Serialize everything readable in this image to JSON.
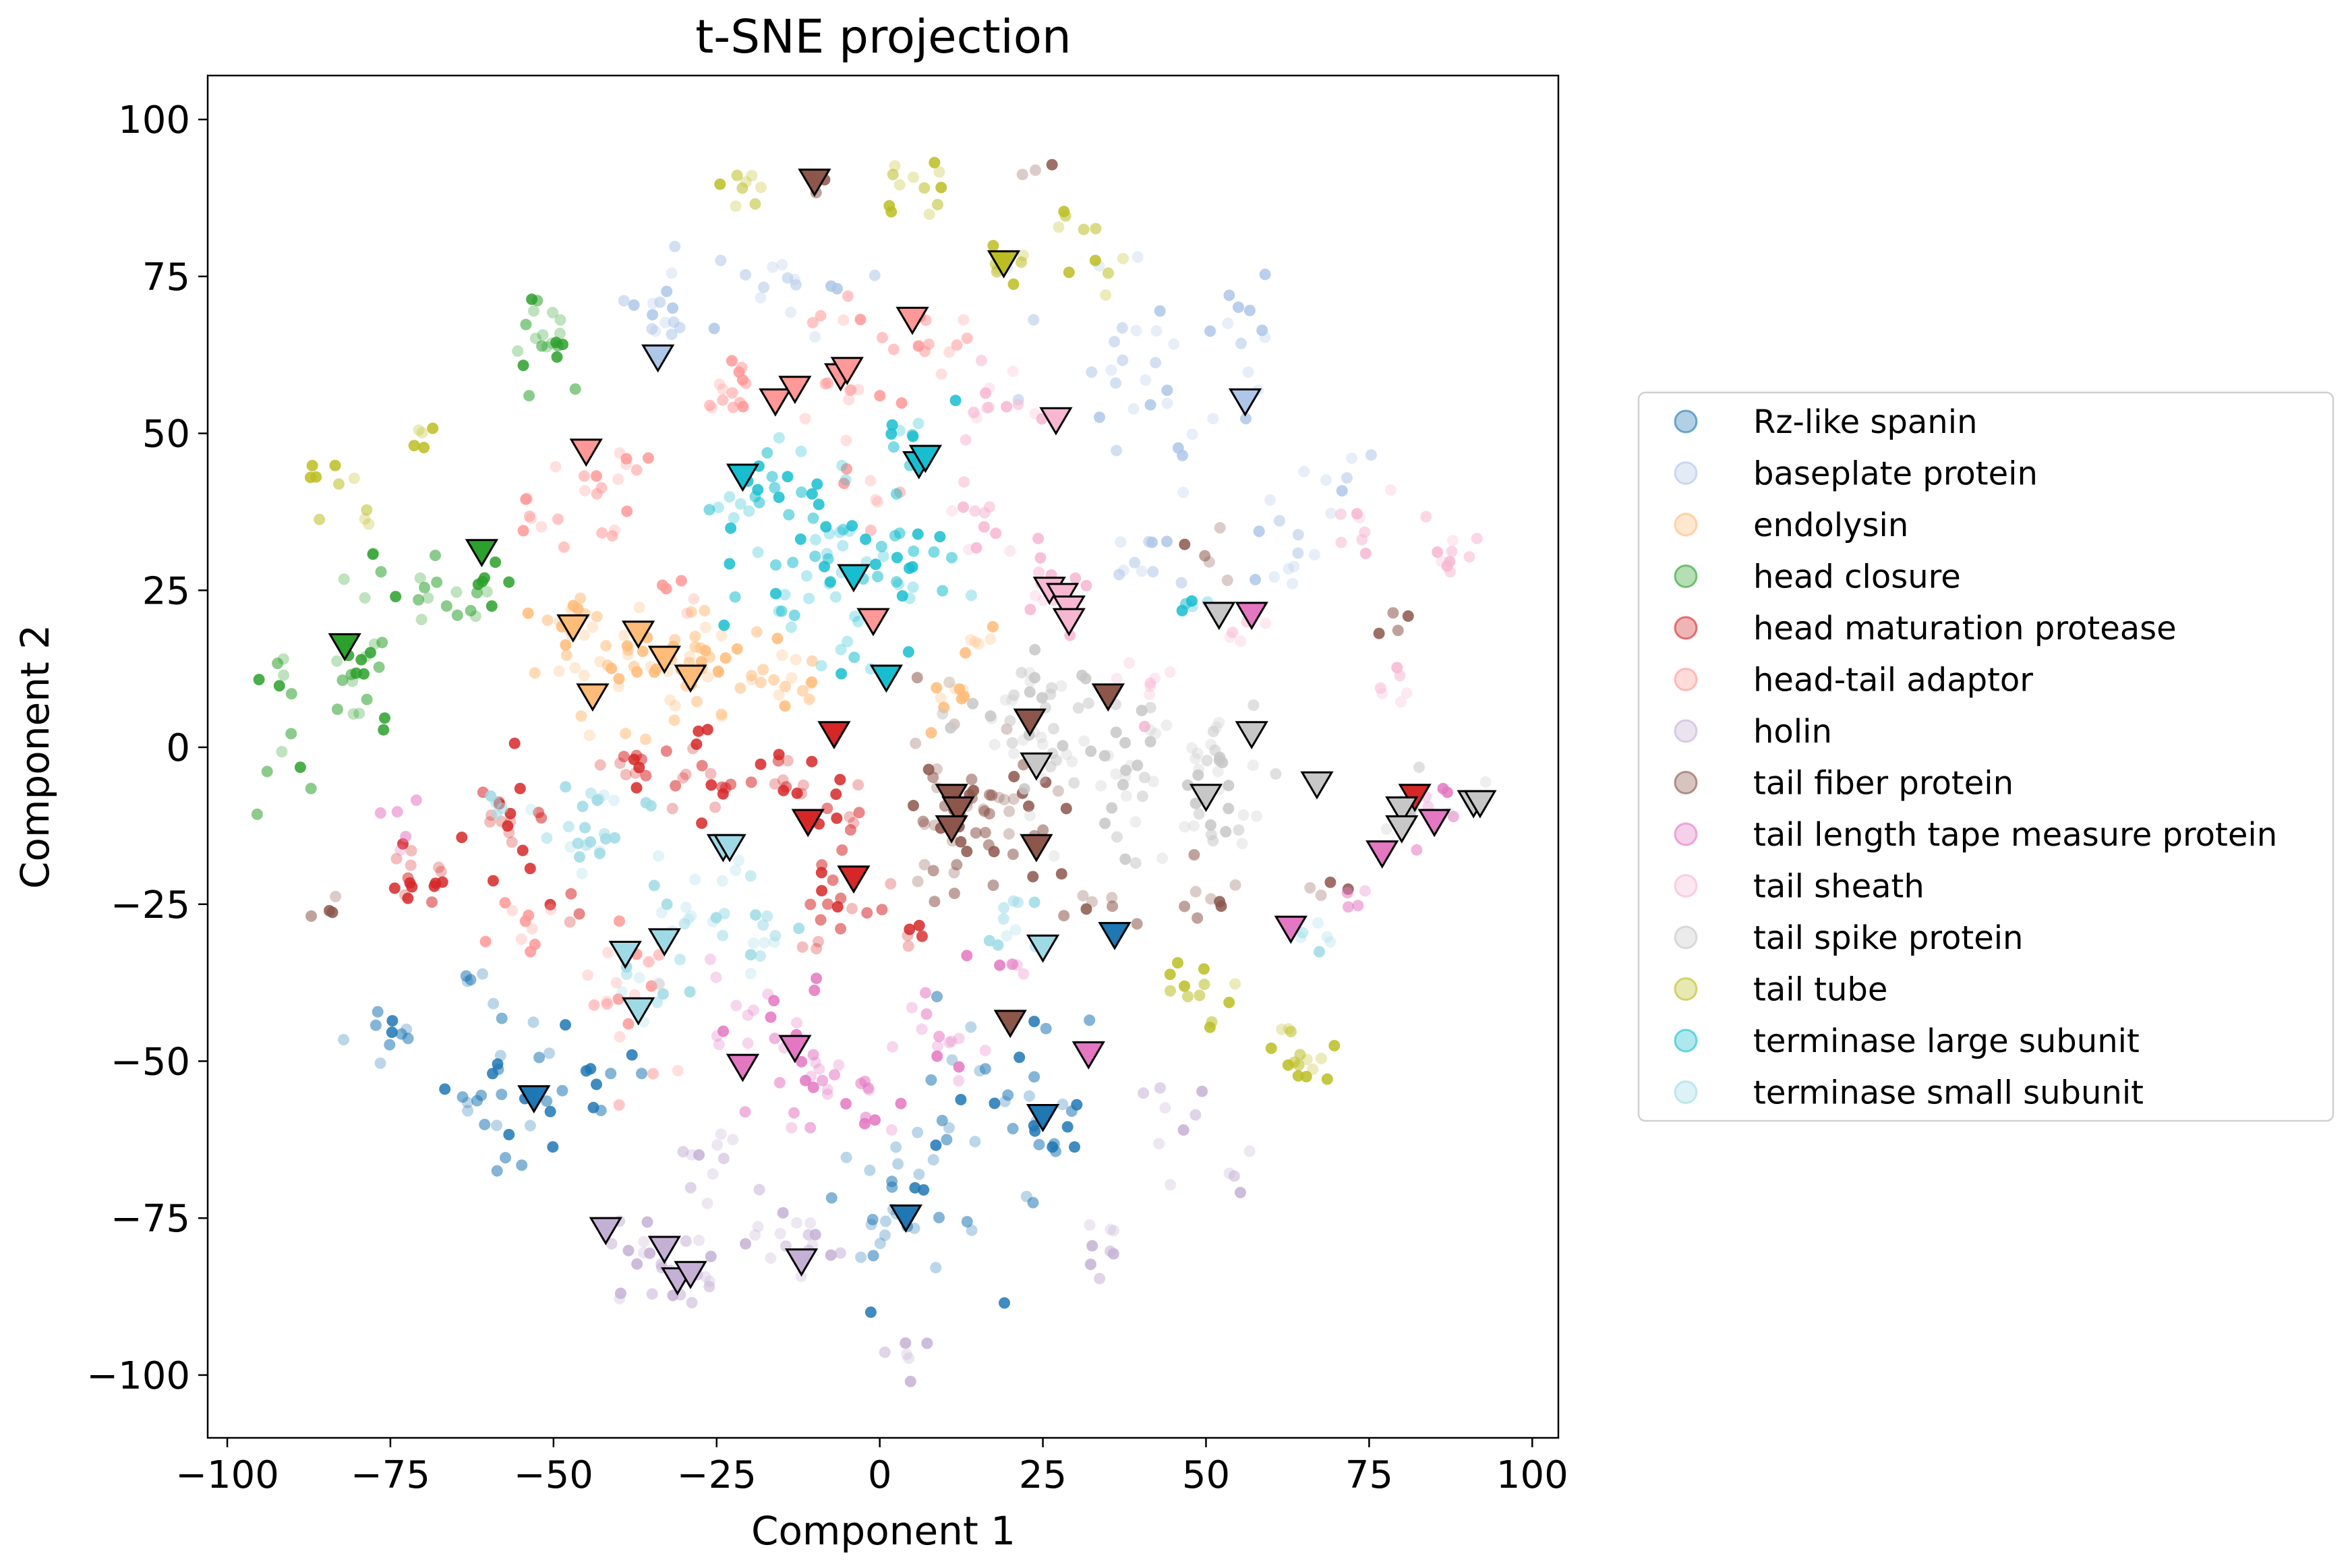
{
  "chart_data": {
    "type": "scatter",
    "title": "t-SNE projection",
    "xlabel": "Component 1",
    "ylabel": "Component 2",
    "xlim": [
      -103,
      104
    ],
    "ylim": [
      -110,
      107
    ],
    "xticks": [
      -100,
      -75,
      -50,
      -25,
      0,
      25,
      50,
      75,
      100
    ],
    "yticks": [
      -100,
      -75,
      -50,
      -25,
      0,
      25,
      50,
      75,
      100
    ],
    "xtick_labels": [
      "−100",
      "−75",
      "−50",
      "−25",
      "0",
      "25",
      "50",
      "75",
      "100"
    ],
    "ytick_labels": [
      "−100",
      "−75",
      "−50",
      "−25",
      "0",
      "25",
      "50",
      "75",
      "100"
    ],
    "grid": false,
    "legend_position": "outside-right",
    "marker_note": "small circles = individual proteins (semi-transparent); triangles with black edge = class-level markers",
    "series": [
      {
        "name": "Rz-like spanin",
        "color": "#1f77b4",
        "clusters": [
          [
            -76,
            -45,
            3,
            10
          ],
          [
            -62,
            -37,
            1,
            4
          ],
          [
            -57,
            -53,
            6,
            30
          ],
          [
            -44,
            -55,
            4,
            8
          ],
          [
            5,
            -73,
            7,
            35
          ],
          [
            18,
            -55,
            6,
            20
          ],
          [
            28,
            -60,
            4,
            10
          ]
        ],
        "markers": [
          [
            -53,
            -56
          ],
          [
            4,
            -75
          ],
          [
            25,
            -59
          ],
          [
            36,
            -30
          ]
        ]
      },
      {
        "name": "baseplate protein",
        "color": "#aec7e8",
        "clusters": [
          [
            -34,
            70,
            3,
            15
          ],
          [
            -14,
            74,
            5,
            15
          ],
          [
            40,
            60,
            8,
            30
          ],
          [
            56,
            67,
            3,
            10
          ],
          [
            41,
            30,
            3,
            10
          ],
          [
            62,
            30,
            4,
            10
          ],
          [
            70,
            44,
            3,
            8
          ]
        ],
        "markers": [
          [
            -34,
            62
          ],
          [
            56,
            55
          ]
        ]
      },
      {
        "name": "endolysin",
        "color": "#ffbb78",
        "clusters": [
          [
            -48,
            20,
            3,
            15
          ],
          [
            -40,
            12,
            6,
            40
          ],
          [
            -27,
            12,
            5,
            25
          ],
          [
            -15,
            11,
            3,
            15
          ],
          [
            10,
            8,
            2,
            10
          ],
          [
            15,
            18,
            2,
            6
          ]
        ],
        "markers": [
          [
            -47,
            19
          ],
          [
            -44,
            8
          ],
          [
            -37,
            18
          ],
          [
            -33,
            14
          ],
          [
            -29,
            11
          ]
        ]
      },
      {
        "name": "head closure",
        "color": "#2ca02c",
        "clusters": [
          [
            -52,
            65,
            3,
            20
          ],
          [
            -72,
            27,
            3,
            10
          ],
          [
            -60,
            24,
            3,
            12
          ],
          [
            -80,
            10,
            4,
            20
          ],
          [
            -92,
            -5,
            3,
            6
          ],
          [
            -91,
            12,
            2,
            5
          ],
          [
            -78,
            28,
            2,
            4
          ]
        ],
        "markers": [
          [
            -82,
            16
          ],
          [
            -61,
            31
          ]
        ]
      },
      {
        "name": "head maturation protease",
        "color": "#d62728",
        "clusters": [
          [
            -72,
            -20,
            3,
            15
          ],
          [
            -57,
            -12,
            4,
            20
          ],
          [
            -38,
            -2,
            4,
            15
          ],
          [
            -28,
            -5,
            4,
            15
          ],
          [
            -15,
            -5,
            3,
            12
          ],
          [
            -8,
            -12,
            4,
            15
          ],
          [
            -5,
            -28,
            4,
            15
          ],
          [
            4,
            -30,
            2,
            6
          ],
          [
            -48,
            -25,
            2,
            4
          ]
        ],
        "markers": [
          [
            -7,
            2
          ],
          [
            -11,
            -12
          ],
          [
            -4,
            -21
          ],
          [
            82,
            -8
          ]
        ]
      },
      {
        "name": "head-tail adaptor",
        "color": "#ff9896",
        "clusters": [
          [
            -22,
            58,
            3,
            15
          ],
          [
            -5,
            56,
            4,
            15
          ],
          [
            8,
            65,
            3,
            10
          ],
          [
            -6,
            70,
            3,
            6
          ],
          [
            -45,
            42,
            3,
            12
          ],
          [
            -38,
            45,
            2,
            6
          ],
          [
            -53,
            37,
            2,
            6
          ],
          [
            -38,
            -40,
            6,
            20
          ],
          [
            -55,
            -30,
            3,
            10
          ],
          [
            -32,
            25,
            2,
            5
          ],
          [
            0,
            40,
            3,
            6
          ]
        ],
        "markers": [
          [
            -16,
            55
          ],
          [
            -13,
            57
          ],
          [
            -6,
            59
          ],
          [
            -5,
            60
          ],
          [
            -1,
            20
          ],
          [
            5,
            68
          ],
          [
            -45,
            47
          ]
        ]
      },
      {
        "name": "holin",
        "color": "#c5b0d5",
        "clusters": [
          [
            -35,
            -82,
            4,
            20
          ],
          [
            -20,
            -75,
            4,
            10
          ],
          [
            -10,
            -80,
            3,
            10
          ],
          [
            3,
            -97,
            2,
            6
          ],
          [
            -25,
            -65,
            3,
            8
          ],
          [
            33,
            -80,
            3,
            8
          ],
          [
            45,
            -60,
            3,
            8
          ],
          [
            55,
            -68,
            2,
            4
          ],
          [
            -27,
            -85,
            2,
            4
          ]
        ],
        "markers": [
          [
            -42,
            -77
          ],
          [
            -33,
            -80
          ],
          [
            -31,
            -85
          ],
          [
            -29,
            -84
          ],
          [
            -12,
            -82
          ]
        ]
      },
      {
        "name": "tail fiber protein",
        "color": "#8c564b",
        "clusters": [
          [
            15,
            -10,
            6,
            60
          ],
          [
            33,
            -25,
            3,
            8
          ],
          [
            48,
            -25,
            3,
            8
          ],
          [
            50,
            30,
            2,
            5
          ],
          [
            79,
            20,
            2,
            4
          ],
          [
            -85,
            -25,
            2,
            4
          ],
          [
            70,
            -22,
            2,
            4
          ],
          [
            25,
            92,
            1,
            3
          ],
          [
            -10,
            90,
            1,
            3
          ]
        ],
        "markers": [
          [
            -10,
            90
          ],
          [
            23,
            4
          ],
          [
            11,
            -8
          ],
          [
            12,
            -10
          ],
          [
            11,
            -13
          ],
          [
            24,
            -16
          ],
          [
            35,
            8
          ],
          [
            20,
            -44
          ]
        ]
      },
      {
        "name": "tail length tape measure protein",
        "color": "#e377c2",
        "clusters": [
          [
            -18,
            -45,
            5,
            20
          ],
          [
            -10,
            -55,
            4,
            15
          ],
          [
            0,
            -58,
            3,
            10
          ],
          [
            10,
            -45,
            4,
            15
          ],
          [
            20,
            -35,
            2,
            6
          ],
          [
            -73,
            -12,
            2,
            5
          ],
          [
            85,
            -10,
            3,
            8
          ],
          [
            72,
            -25,
            2,
            4
          ]
        ],
        "markers": [
          [
            -21,
            -51
          ],
          [
            -13,
            -48
          ],
          [
            32,
            -49
          ],
          [
            57,
            21
          ],
          [
            63,
            -29
          ],
          [
            77,
            -17
          ],
          [
            85,
            -12
          ]
        ]
      },
      {
        "name": "tail sheath",
        "color": "#f7b6d2",
        "clusters": [
          [
            18,
            54,
            4,
            15
          ],
          [
            15,
            35,
            3,
            10
          ],
          [
            26,
            25,
            3,
            15
          ],
          [
            40,
            10,
            3,
            8
          ],
          [
            75,
            35,
            3,
            8
          ],
          [
            87,
            30,
            3,
            10
          ],
          [
            80,
            10,
            2,
            6
          ],
          [
            55,
            20,
            2,
            5
          ]
        ],
        "markers": [
          [
            27,
            52
          ],
          [
            26,
            25
          ],
          [
            28,
            24
          ],
          [
            29,
            22
          ],
          [
            29,
            20
          ]
        ]
      },
      {
        "name": "tail spike protein",
        "color": "#c7c7c7",
        "clusters": [
          [
            25,
            5,
            6,
            40
          ],
          [
            38,
            -3,
            6,
            35
          ],
          [
            50,
            0,
            4,
            20
          ],
          [
            53,
            -12,
            4,
            15
          ],
          [
            80,
            -10,
            2,
            6
          ],
          [
            90,
            -8,
            2,
            5
          ]
        ],
        "markers": [
          [
            24,
            -3
          ],
          [
            50,
            -8
          ],
          [
            52,
            21
          ],
          [
            57,
            2
          ],
          [
            67,
            -6
          ],
          [
            80,
            -10
          ],
          [
            80,
            -13
          ],
          [
            91,
            -9
          ],
          [
            92,
            -9
          ]
        ]
      },
      {
        "name": "tail tube",
        "color": "#bcbd22",
        "clusters": [
          [
            -83,
            40,
            3,
            10
          ],
          [
            -70,
            50,
            2,
            5
          ],
          [
            -22,
            88,
            2,
            8
          ],
          [
            5,
            90,
            3,
            12
          ],
          [
            20,
            76,
            2,
            8
          ],
          [
            33,
            80,
            3,
            10
          ],
          [
            50,
            -40,
            3,
            12
          ],
          [
            65,
            -48,
            3,
            15
          ]
        ],
        "markers": [
          [
            19,
            77
          ]
        ]
      },
      {
        "name": "terminase large subunit",
        "color": "#17becf",
        "clusters": [
          [
            -20,
            38,
            4,
            20
          ],
          [
            -8,
            35,
            5,
            25
          ],
          [
            -15,
            25,
            4,
            15
          ],
          [
            0,
            30,
            4,
            15
          ],
          [
            8,
            25,
            3,
            10
          ],
          [
            -5,
            15,
            3,
            8
          ],
          [
            5,
            50,
            3,
            8
          ],
          [
            48,
            22,
            2,
            5
          ]
        ],
        "markers": [
          [
            -21,
            43
          ],
          [
            -4,
            27
          ],
          [
            1,
            11
          ],
          [
            6,
            45
          ],
          [
            7,
            46
          ]
        ]
      },
      {
        "name": "terminase small subunit",
        "color": "#9edae5",
        "clusters": [
          [
            -45,
            -12,
            5,
            25
          ],
          [
            -28,
            -25,
            4,
            20
          ],
          [
            -15,
            -30,
            3,
            10
          ],
          [
            -35,
            -38,
            3,
            10
          ],
          [
            22,
            -30,
            3,
            10
          ],
          [
            68,
            -30,
            2,
            6
          ],
          [
            -60,
            -8,
            2,
            4
          ]
        ],
        "markers": [
          [
            -24,
            -16
          ],
          [
            -23,
            -16
          ],
          [
            -39,
            -33
          ],
          [
            -33,
            -31
          ],
          [
            -37,
            -42
          ],
          [
            25,
            -32
          ]
        ]
      }
    ]
  }
}
